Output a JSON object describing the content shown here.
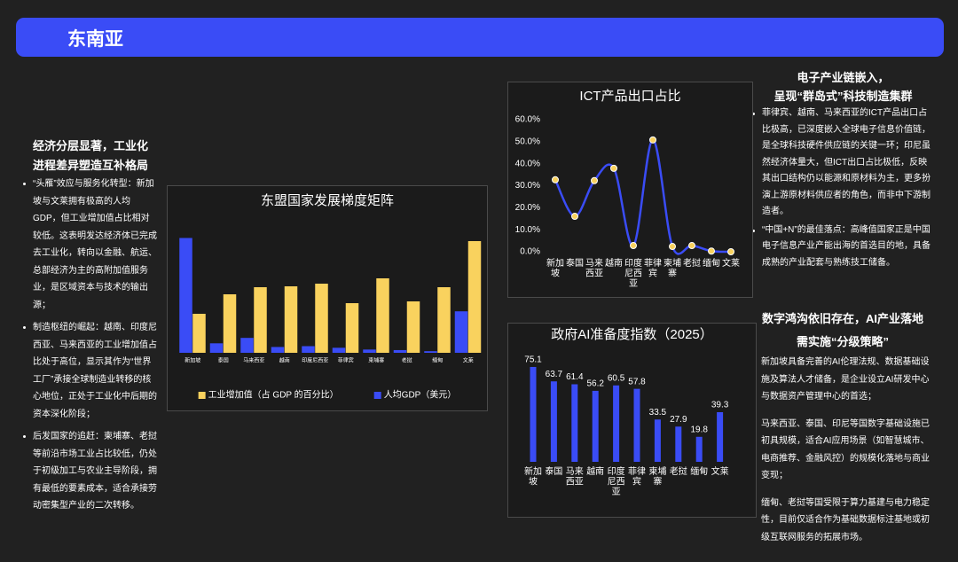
{
  "header": {
    "title": "东南亚"
  },
  "left": {
    "heading": [
      "经济分层显著，工业化",
      "进程差异塑造互补格局"
    ],
    "bullets": [
      "“头雁”效应与服务化转型：新加坡与文莱拥有极高的人均GDP，但工业增加值占比相对较低。这表明发达经济体已完成去工业化，转向以金融、航运、总部经济为主的高附加值服务业，是区域资本与技术的输出源；",
      "制造枢纽的崛起：越南、印度尼西亚、马来西亚的工业增加值占比处于高位，显示其作为“世界工厂”承接全球制造业转移的核心地位，正处于工业化中后期的资本深化阶段；",
      "后发国家的追赶：柬埔寨、老挝等前沿市场工业占比较低，仍处于初级加工与农业主导阶段，拥有最低的要素成本，适合承接劳动密集型产业的二次转移。"
    ]
  },
  "right_top": {
    "heading": [
      "电子产业链嵌入，",
      "呈现“群岛式”科技制造集群"
    ],
    "bullets": [
      "菲律宾、越南、马来西亚的ICT产品出口占比极高，已深度嵌入全球电子信息价值链，是全球科技硬件供应链的关键一环；印尼虽然经济体量大，但ICT出口占比极低，反映其出口结构仍以能源和原材料为主，更多扮演上游原材料供应者的角色，而非中下游制造者。",
      "“中国+N”的最佳落点：高峰值国家正是中国电子信息产业产能出海的首选目的地，具备成熟的产业配套与熟练技工储备。"
    ]
  },
  "right_bottom": {
    "heading": [
      "数字鸿沟依旧存在，AI产业落地",
      "需实施“分级策略”"
    ],
    "bullets": [
      "新加坡具备完善的AI伦理法规、数据基础设施及算法人才储备，是企业设立AI研发中心与数据资产管理中心的首选；",
      "马来西亚、泰国、印尼等国数字基础设施已初具规模，适合AI应用场景（如智慧城市、电商推荐、金融风控）的规模化落地与商业变现；",
      "缅甸、老挝等国受限于算力基建与电力稳定性，目前仅适合作为基础数据标注基地或初级互联网服务的拓展市场。"
    ]
  },
  "chart_data": [
    {
      "type": "bar",
      "title": "东盟国家发展梯度矩阵",
      "categories": [
        "新加坡",
        "泰国",
        "马来西亚",
        "越南",
        "印度尼西亚",
        "菲律宾",
        "柬埔寨",
        "老挝",
        "缅甸",
        "文莱"
      ],
      "series": [
        {
          "name": "工业增加值（占 GDP 的百分比）",
          "color": "#f9d25e",
          "values": [
            22,
            33,
            37,
            37.5,
            39,
            28,
            42,
            29,
            37,
            63
          ]
        },
        {
          "name": "人均GDP（美元）",
          "color": "#3a4cf6",
          "axis": "y2",
          "values": [
            84700,
            7000,
            11000,
            4300,
            4900,
            3700,
            2400,
            2000,
            1200,
            30600
          ]
        }
      ],
      "ylim": [
        0,
        65
      ],
      "y2lim": [
        0,
        85000
      ],
      "legend": "bottom"
    },
    {
      "type": "line",
      "title": "ICT产品出口占比",
      "categories": [
        "新加坡",
        "泰国",
        "马来西亚",
        "越南",
        "印度尼西亚",
        "菲律宾",
        "柬埔寨",
        "老挝",
        "缅甸",
        "文莱"
      ],
      "values": [
        32.7,
        16.1,
        32.3,
        37.9,
        2.8,
        50.8,
        2.4,
        2.8,
        0.3,
        0
      ],
      "color": "#3a4cf6",
      "marker_color": "#f9d25e",
      "smooth": true,
      "ylim": [
        0,
        60
      ],
      "yticks": [
        {
          "value": 0,
          "label": "0.0%"
        },
        {
          "value": 10,
          "label": "10.0%"
        },
        {
          "value": 20,
          "label": "20.0%"
        },
        {
          "value": 30,
          "label": "30.0%"
        },
        {
          "value": 40,
          "label": "40.0%"
        },
        {
          "value": 50,
          "label": "50.0%"
        },
        {
          "value": 60,
          "label": "60.0%"
        }
      ]
    },
    {
      "type": "bar",
      "title": "政府AI准备度指数（2025）",
      "categories": [
        "新加坡",
        "泰国",
        "马来西亚",
        "越南",
        "印度尼西亚",
        "菲律宾",
        "柬埔寨",
        "老挝",
        "缅甸",
        "文莱"
      ],
      "values": [
        75.1,
        63.7,
        61.4,
        56.2,
        60.5,
        57.8,
        33.5,
        27.9,
        19.8,
        39.3
      ],
      "color": "#3a4cf6",
      "ylim": [
        0,
        80
      ],
      "data_labels": true
    }
  ]
}
